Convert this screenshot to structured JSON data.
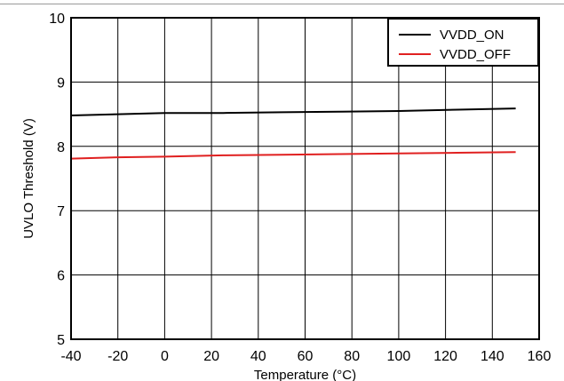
{
  "chart_data": {
    "type": "line",
    "title": "",
    "xlabel": "Temperature (°C)",
    "ylabel": "UVLO Threshold (V)",
    "xlim": [
      -40,
      160
    ],
    "ylim": [
      5,
      10
    ],
    "xticks": [
      -40,
      -20,
      0,
      20,
      40,
      60,
      80,
      100,
      120,
      140,
      160
    ],
    "yticks": [
      5,
      6,
      7,
      8,
      9,
      10
    ],
    "grid": true,
    "legend_position": "top-right",
    "series": [
      {
        "name": "VVDD_ON",
        "color": "#000000",
        "x": [
          -40,
          -20,
          0,
          25,
          50,
          75,
          100,
          125,
          150
        ],
        "y": [
          8.48,
          8.5,
          8.52,
          8.52,
          8.53,
          8.54,
          8.55,
          8.57,
          8.59
        ]
      },
      {
        "name": "VVDD_OFF",
        "color": "#e02020",
        "x": [
          -40,
          -20,
          0,
          25,
          50,
          75,
          100,
          125,
          150
        ],
        "y": [
          7.81,
          7.83,
          7.84,
          7.86,
          7.87,
          7.88,
          7.89,
          7.9,
          7.91
        ]
      }
    ]
  }
}
